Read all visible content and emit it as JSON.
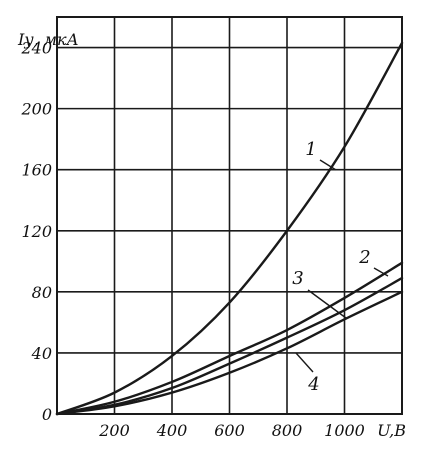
{
  "chart_data": {
    "type": "line",
    "ylabel": "Iу, мкА",
    "xlabel": "U,В",
    "xlim": [
      0,
      1200
    ],
    "ylim": [
      0,
      260
    ],
    "x_ticks": [
      200,
      400,
      600,
      800,
      1000
    ],
    "x_tick_labels": [
      "200",
      "400",
      "600",
      "800",
      "1000"
    ],
    "y_ticks": [
      0,
      40,
      80,
      120,
      160,
      200,
      240
    ],
    "y_tick_labels": [
      "0",
      "40",
      "80",
      "120",
      "160",
      "200",
      "240"
    ],
    "grid": true,
    "series": [
      {
        "name": "1",
        "x": [
          0,
          200,
          400,
          600,
          800,
          1000,
          1200
        ],
        "values": [
          0,
          14,
          38,
          73,
          120,
          175,
          243
        ]
      },
      {
        "name": "2",
        "x": [
          0,
          200,
          400,
          600,
          800,
          1000,
          1200
        ],
        "values": [
          0,
          8,
          21,
          38,
          55,
          76,
          99
        ]
      },
      {
        "name": "3",
        "x": [
          0,
          200,
          400,
          600,
          800,
          1000,
          1200
        ],
        "values": [
          0,
          6,
          17,
          33,
          50,
          68,
          89
        ]
      },
      {
        "name": "4",
        "x": [
          0,
          200,
          400,
          600,
          800,
          1000,
          1200
        ],
        "values": [
          0,
          5,
          14,
          27,
          43,
          62,
          80
        ]
      }
    ]
  }
}
